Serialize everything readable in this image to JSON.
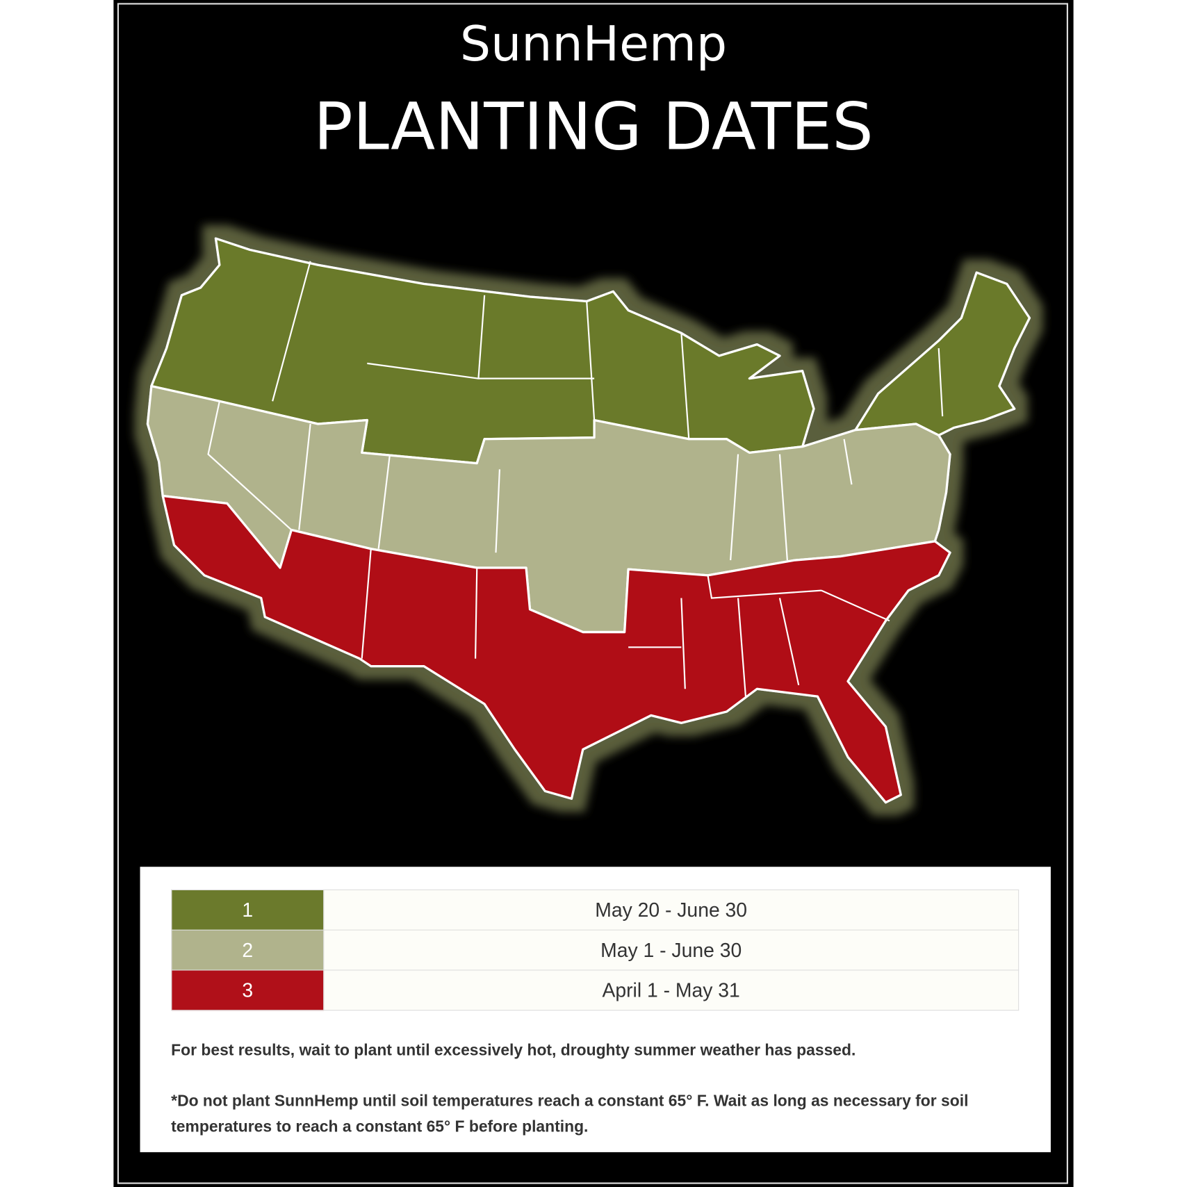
{
  "header": {
    "title": "SunnHemp",
    "subtitle": "PLANTING DATES"
  },
  "legend": {
    "rows": [
      {
        "zone": "1",
        "dates": "May 20 - June 30",
        "color": "#6b7a2c"
      },
      {
        "zone": "2",
        "dates": "May 1 - June 30",
        "color": "#b0b38c"
      },
      {
        "zone": "3",
        "dates": "April 1 - May 31",
        "color": "#b01019"
      }
    ]
  },
  "notes": [
    "For best results, wait to plant until excessively hot, droughty summer weather has passed.",
    "*Do not plant SunnHemp until soil temperatures reach a constant 65° F. Wait as long as necessary for soil temperatures to reach a constant 65° F before planting."
  ]
}
